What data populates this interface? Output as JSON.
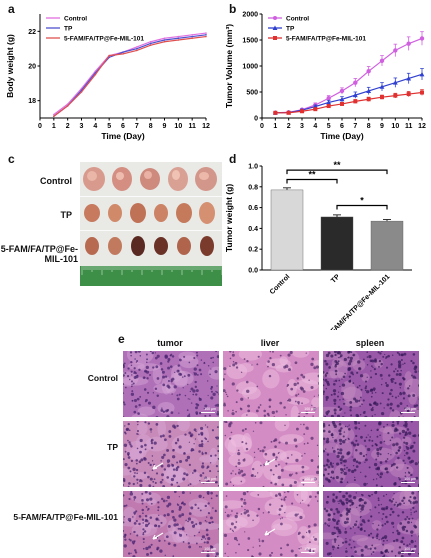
{
  "panels": {
    "a": "a",
    "b": "b",
    "c": "c",
    "d": "d",
    "e": "e"
  },
  "chart_data": [
    {
      "type": "line",
      "panel": "a",
      "xlabel": "Time (Day)",
      "ylabel": "Body weight (g)",
      "x": [
        1,
        2,
        3,
        4,
        5,
        6,
        7,
        8,
        9,
        10,
        11,
        12
      ],
      "xlim": [
        0,
        12
      ],
      "ylim": [
        17,
        23
      ],
      "yticks": [
        18,
        20,
        22
      ],
      "xticks": [
        0,
        1,
        2,
        3,
        4,
        5,
        6,
        7,
        8,
        9,
        10,
        11,
        12
      ],
      "legend_position": "top-left",
      "series": [
        {
          "name": "Control",
          "color": "#e070e0",
          "marker": "none",
          "values": [
            17.2,
            17.8,
            18.7,
            19.7,
            20.6,
            20.8,
            21.1,
            21.4,
            21.6,
            21.7,
            21.8,
            21.9
          ]
        },
        {
          "name": "TP",
          "color": "#5050d0",
          "marker": "none",
          "values": [
            17.1,
            17.7,
            18.6,
            19.6,
            20.5,
            20.8,
            21.0,
            21.3,
            21.5,
            21.6,
            21.7,
            21.8
          ]
        },
        {
          "name": "5-FAM/FA/TP@Fe-MIL-101",
          "color": "#e05050",
          "marker": "none",
          "values": [
            17.1,
            17.7,
            18.5,
            19.5,
            20.6,
            20.7,
            20.9,
            21.2,
            21.4,
            21.5,
            21.6,
            21.7
          ]
        }
      ]
    },
    {
      "type": "line",
      "panel": "b",
      "xlabel": "Time (Day)",
      "ylabel": "Tumor Volume (mm³)",
      "x": [
        1,
        2,
        3,
        4,
        5,
        6,
        7,
        8,
        9,
        10,
        11,
        12
      ],
      "xlim": [
        0,
        12
      ],
      "ylim": [
        0,
        2000
      ],
      "yticks": [
        0,
        500,
        1000,
        1500,
        2000
      ],
      "xticks": [
        0,
        1,
        2,
        3,
        4,
        5,
        6,
        7,
        8,
        9,
        10,
        11,
        12
      ],
      "legend_position": "top-left",
      "series": [
        {
          "name": "Control",
          "color": "#d060e0",
          "marker": "circle",
          "values": [
            100,
            110,
            160,
            250,
            380,
            520,
            680,
            900,
            1100,
            1300,
            1430,
            1530
          ],
          "errors": [
            10,
            15,
            20,
            40,
            50,
            60,
            80,
            90,
            100,
            120,
            130,
            130
          ]
        },
        {
          "name": "TP",
          "color": "#3040d0",
          "marker": "triangle",
          "values": [
            100,
            105,
            150,
            220,
            300,
            360,
            440,
            520,
            600,
            680,
            760,
            840
          ],
          "errors": [
            10,
            15,
            20,
            30,
            40,
            50,
            60,
            70,
            80,
            90,
            100,
            110
          ]
        },
        {
          "name": "5-FAM/FA/TP@Fe-MIL-101",
          "color": "#e03030",
          "marker": "square",
          "values": [
            100,
            100,
            130,
            170,
            230,
            270,
            320,
            360,
            400,
            430,
            460,
            490
          ],
          "errors": [
            10,
            10,
            15,
            20,
            25,
            30,
            35,
            40,
            40,
            45,
            50,
            55
          ]
        }
      ]
    },
    {
      "type": "bar",
      "panel": "d",
      "ylabel": "Tumor weight (g)",
      "categories": [
        "Control",
        "TP",
        "5-FAM/FA/TP@Fe-MIL-101"
      ],
      "values": [
        0.77,
        0.51,
        0.47
      ],
      "errors": [
        0.02,
        0.02,
        0.015
      ],
      "colors": [
        "#d8d8d8",
        "#2a2a2a",
        "#8a8a8a"
      ],
      "ylim": [
        0,
        1.0
      ],
      "yticks": [
        0,
        0.2,
        0.4,
        0.6,
        0.8,
        1.0
      ],
      "significance": [
        {
          "from": 0,
          "to": 2,
          "label": "**"
        },
        {
          "from": 0,
          "to": 1,
          "label": "**"
        },
        {
          "from": 1,
          "to": 2,
          "label": "*"
        }
      ]
    }
  ],
  "tumor_photo": {
    "rows": [
      "Control",
      "TP",
      "5-FAM/FA/TP@Fe-MIL-101"
    ],
    "count_per_row": [
      5,
      6,
      6
    ]
  },
  "histology": {
    "columns": [
      "tumor",
      "liver",
      "spleen"
    ],
    "rows": [
      "Control",
      "TP",
      "5-FAM/FA/TP@Fe-MIL-101"
    ],
    "scale_label": "100 μm"
  }
}
